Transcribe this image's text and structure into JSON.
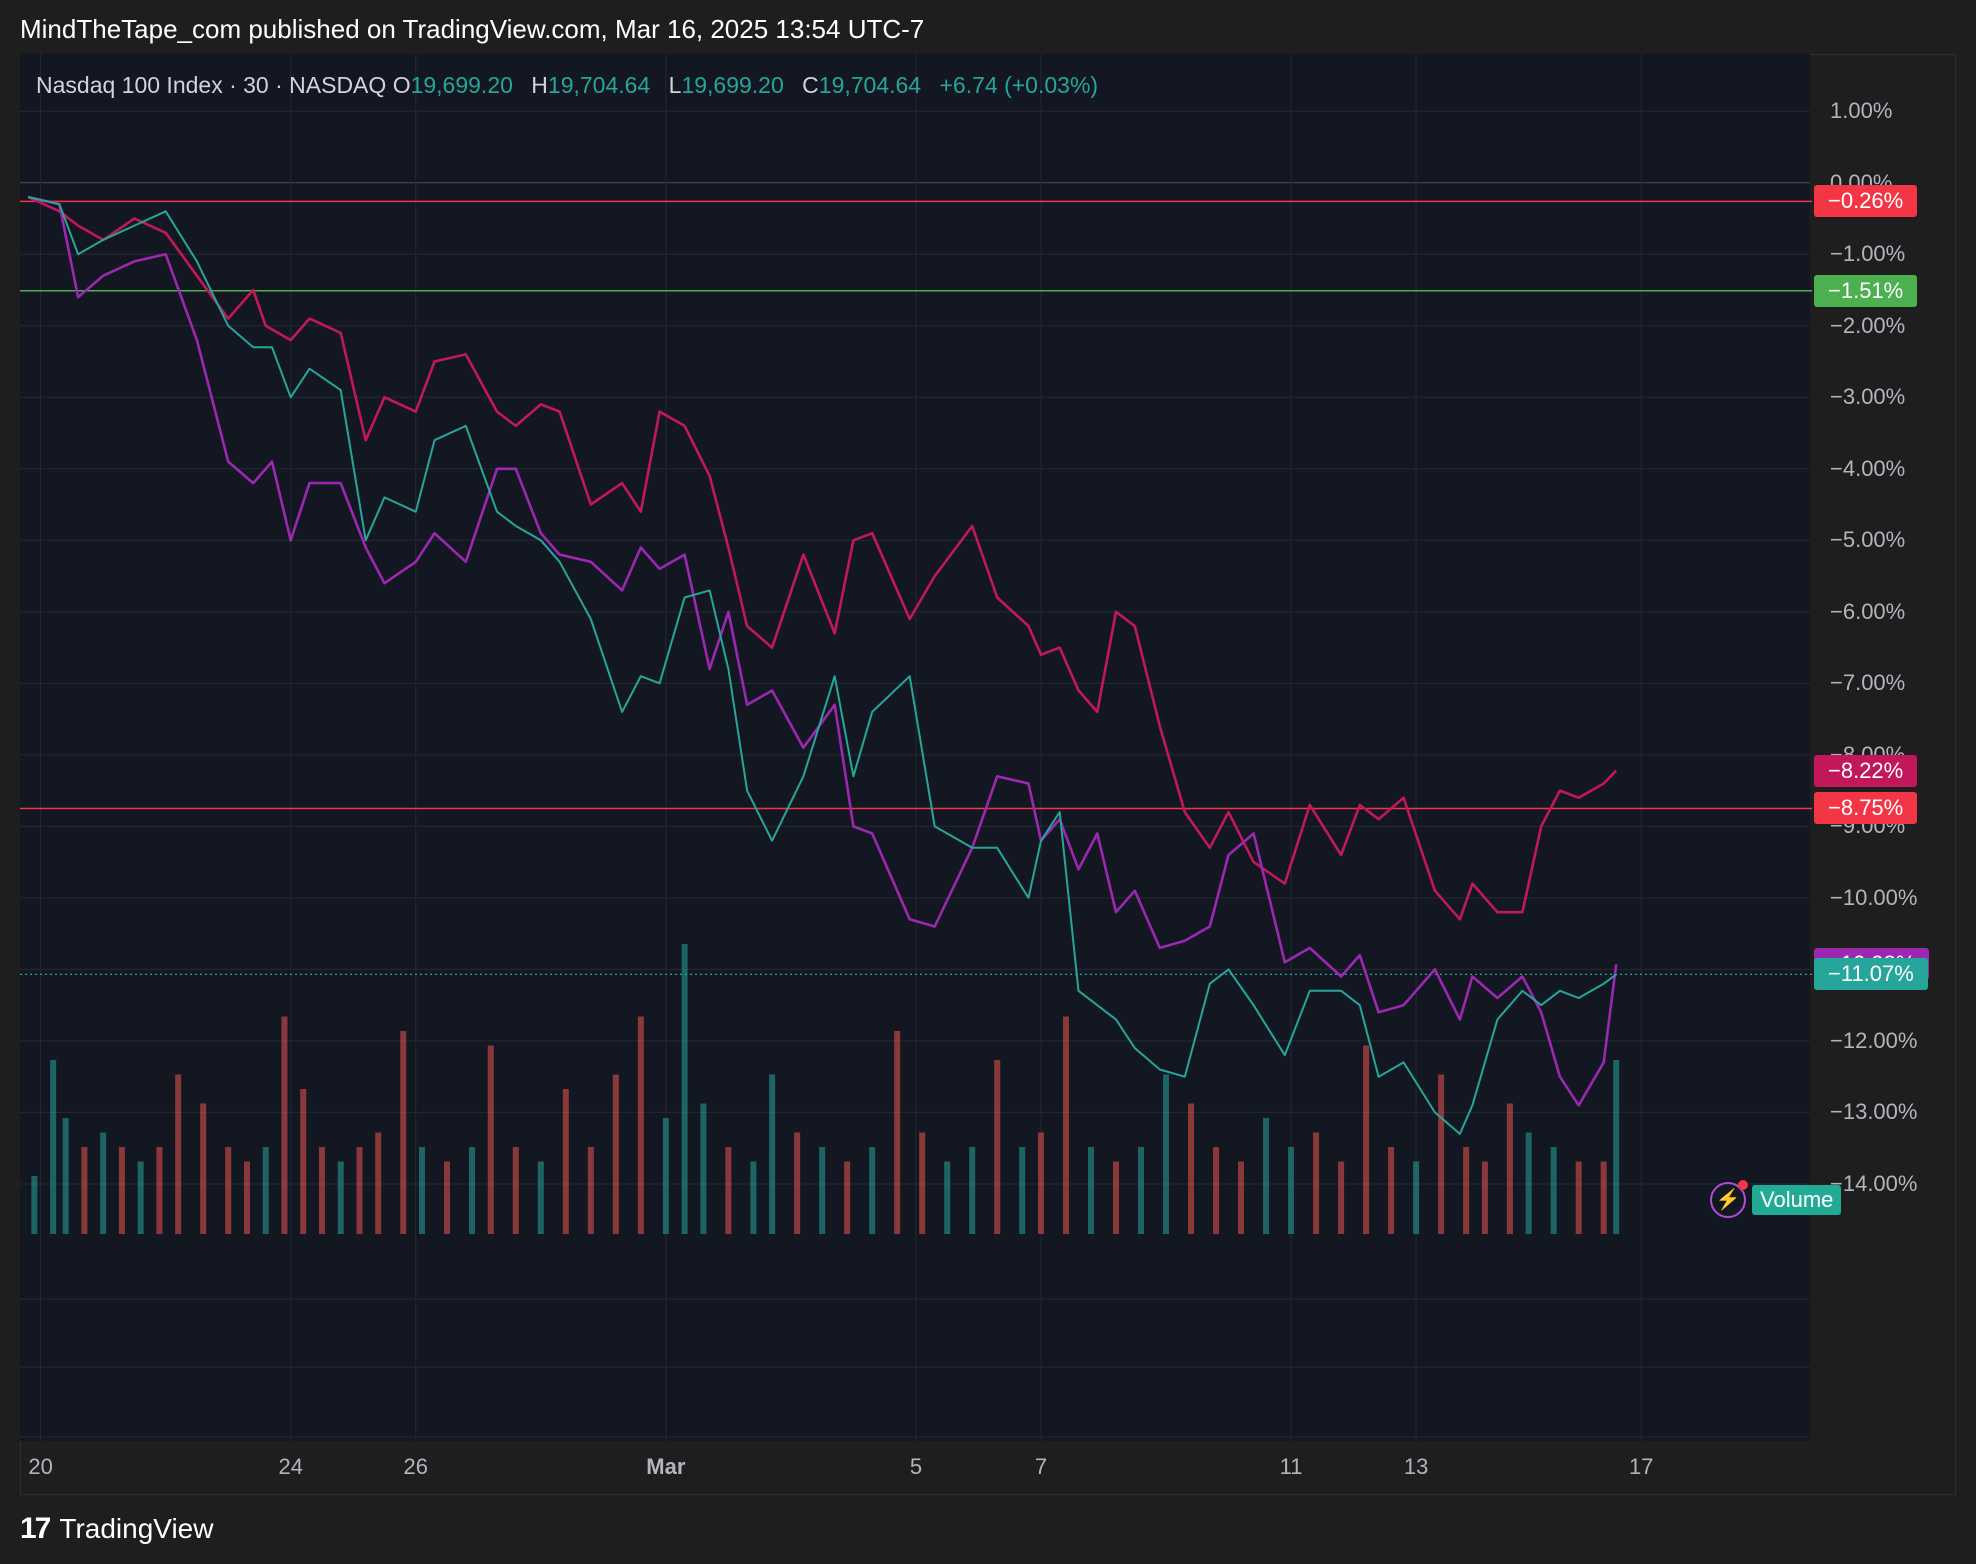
{
  "header": {
    "publisher": "MindTheTape_com published on TradingView.com, Mar 16, 2025 13:54 UTC-7"
  },
  "legend": {
    "symbol": "Nasdaq 100 Index · 30 · NASDAQ",
    "open_key": "O",
    "open": "19,699.20",
    "high_key": "H",
    "high": "19,704.64",
    "low_key": "L",
    "low": "19,699.20",
    "close_key": "C",
    "close": "19,704.64",
    "change": "+6.74 (+0.03%)"
  },
  "footer": {
    "brand": "TradingView",
    "logo": "17"
  },
  "colors": {
    "up": "#26a69a",
    "down": "#ef5350",
    "series_pink": "#c2185b",
    "series_purple": "#9c27b0",
    "bg": "#131722"
  },
  "volume_badge": {
    "label": "Volume",
    "icon": "lightning-icon"
  },
  "chart_data": {
    "type": "line",
    "x_ticks": [
      {
        "label": "20",
        "day": 0
      },
      {
        "label": "24",
        "day": 4
      },
      {
        "label": "26",
        "day": 6
      },
      {
        "label": "Mar",
        "day": 10
      },
      {
        "label": "5",
        "day": 14
      },
      {
        "label": "7",
        "day": 16
      },
      {
        "label": "11",
        "day": 20
      },
      {
        "label": "13",
        "day": 22
      },
      {
        "label": "17",
        "day": 25.6
      }
    ],
    "x_range": [
      -0.33,
      28.3
    ],
    "y_ticks": [
      "1.00%",
      "0.00%",
      "−1.00%",
      "−2.00%",
      "−3.00%",
      "−4.00%",
      "−5.00%",
      "−6.00%",
      "−7.00%",
      "−8.00%",
      "−9.00%",
      "−10.00%",
      "−11.00%",
      "−12.00%",
      "−13.00%",
      "−14.00%"
    ],
    "y_tick_values": [
      1,
      0,
      -1,
      -2,
      -3,
      -4,
      -5,
      -6,
      -7,
      -8,
      -9,
      -10,
      -11,
      -12,
      -13,
      -14
    ],
    "ylim": [
      -14.7,
      1.8
    ],
    "horizontal_lines": [
      {
        "value": -0.26,
        "color": "#f23645",
        "label": "−0.26%"
      },
      {
        "value": -1.51,
        "color": "#4caf50",
        "label": "−1.51%"
      },
      {
        "value": -8.75,
        "color": "#f23645",
        "label": "−8.75%"
      }
    ],
    "price_tags": [
      {
        "value": -8.22,
        "color": "#c2185b",
        "label": "−8.22%"
      },
      {
        "value": -10.93,
        "color": "#9c27b0",
        "label": "−10.93%"
      },
      {
        "value": -11.07,
        "color": "#26a69a",
        "label": "−11.07%"
      }
    ],
    "series": [
      {
        "color": "#c2185b",
        "x": [
          -0.2,
          0.3,
          0.6,
          1.0,
          1.5,
          2.0,
          2.5,
          3.0,
          3.4,
          3.6,
          4.0,
          4.3,
          4.8,
          5.2,
          5.5,
          6.0,
          6.3,
          6.8,
          7.3,
          7.6,
          8.0,
          8.3,
          8.8,
          9.3,
          9.6,
          9.9,
          10.3,
          10.7,
          11.0,
          11.3,
          11.7,
          12.2,
          12.7,
          13.0,
          13.3,
          13.9,
          14.3,
          14.9,
          15.3,
          15.8,
          16.0,
          16.3,
          16.6,
          16.9,
          17.2,
          17.5,
          17.9,
          18.3,
          18.7,
          19.0,
          19.4,
          19.9,
          20.3,
          20.8,
          21.1,
          21.4,
          21.8,
          22.3,
          22.7,
          22.9,
          23.3,
          23.7,
          24.0,
          24.3,
          24.6,
          25.0,
          25.2
        ],
        "y": [
          -0.2,
          -0.4,
          -0.6,
          -0.8,
          -0.5,
          -0.7,
          -1.3,
          -1.9,
          -1.5,
          -2.0,
          -2.2,
          -1.9,
          -2.1,
          -3.6,
          -3.0,
          -3.2,
          -2.5,
          -2.4,
          -3.2,
          -3.4,
          -3.1,
          -3.2,
          -4.5,
          -4.2,
          -4.6,
          -3.2,
          -3.4,
          -4.1,
          -5.1,
          -6.2,
          -6.5,
          -5.2,
          -6.3,
          -5.0,
          -4.9,
          -6.1,
          -5.5,
          -4.8,
          -5.8,
          -6.2,
          -6.6,
          -6.5,
          -7.1,
          -7.4,
          -6.0,
          -6.2,
          -7.6,
          -8.8,
          -9.3,
          -8.8,
          -9.5,
          -9.8,
          -8.7,
          -9.4,
          -8.7,
          -8.9,
          -8.6,
          -9.9,
          -10.3,
          -9.8,
          -10.2,
          -10.2,
          -9.0,
          -8.5,
          -8.6,
          -8.4,
          -8.22
        ]
      },
      {
        "color": "#9c27b0",
        "x": [
          -0.2,
          0.3,
          0.6,
          1.0,
          1.5,
          2.0,
          2.5,
          3.0,
          3.4,
          3.7,
          4.0,
          4.3,
          4.8,
          5.2,
          5.5,
          6.0,
          6.3,
          6.8,
          7.3,
          7.6,
          8.0,
          8.3,
          8.8,
          9.3,
          9.6,
          9.9,
          10.3,
          10.7,
          11.0,
          11.3,
          11.7,
          12.2,
          12.7,
          13.0,
          13.3,
          13.9,
          14.3,
          14.9,
          15.3,
          15.8,
          16.0,
          16.3,
          16.6,
          16.9,
          17.2,
          17.5,
          17.9,
          18.3,
          18.7,
          19.0,
          19.4,
          19.9,
          20.3,
          20.8,
          21.1,
          21.4,
          21.8,
          22.3,
          22.7,
          22.9,
          23.3,
          23.7,
          24.0,
          24.3,
          24.6,
          25.0,
          25.2
        ],
        "y": [
          -0.2,
          -0.3,
          -1.6,
          -1.3,
          -1.1,
          -1.0,
          -2.2,
          -3.9,
          -4.2,
          -3.9,
          -5.0,
          -4.2,
          -4.2,
          -5.1,
          -5.6,
          -5.3,
          -4.9,
          -5.3,
          -4.0,
          -4.0,
          -4.9,
          -5.2,
          -5.3,
          -5.7,
          -5.1,
          -5.4,
          -5.2,
          -6.8,
          -6.0,
          -7.3,
          -7.1,
          -7.9,
          -7.3,
          -9.0,
          -9.1,
          -10.3,
          -10.4,
          -9.3,
          -8.3,
          -8.4,
          -9.2,
          -8.9,
          -9.6,
          -9.1,
          -10.2,
          -9.9,
          -10.7,
          -10.6,
          -10.4,
          -9.4,
          -9.1,
          -10.9,
          -10.7,
          -11.1,
          -10.8,
          -11.6,
          -11.5,
          -11.0,
          -11.7,
          -11.1,
          -11.4,
          -11.1,
          -11.6,
          -12.5,
          -12.9,
          -12.3,
          -10.93
        ]
      },
      {
        "color": "#26a69a",
        "x": [
          -0.2,
          0.3,
          0.6,
          1.0,
          1.5,
          2.0,
          2.5,
          3.0,
          3.4,
          3.7,
          4.0,
          4.3,
          4.8,
          5.2,
          5.5,
          6.0,
          6.3,
          6.8,
          7.3,
          7.6,
          8.0,
          8.3,
          8.8,
          9.3,
          9.6,
          9.9,
          10.3,
          10.7,
          11.0,
          11.3,
          11.7,
          12.2,
          12.7,
          13.0,
          13.3,
          13.9,
          14.3,
          14.9,
          15.3,
          15.8,
          16.0,
          16.3,
          16.6,
          16.9,
          17.2,
          17.5,
          17.9,
          18.3,
          18.7,
          19.0,
          19.4,
          19.9,
          20.3,
          20.8,
          21.1,
          21.4,
          21.8,
          22.3,
          22.7,
          22.9,
          23.3,
          23.7,
          24.0,
          24.3,
          24.6,
          25.0,
          25.2
        ],
        "y": [
          -0.2,
          -0.3,
          -1.0,
          -0.8,
          -0.6,
          -0.4,
          -1.1,
          -2.0,
          -2.3,
          -2.3,
          -3.0,
          -2.6,
          -2.9,
          -5.0,
          -4.4,
          -4.6,
          -3.6,
          -3.4,
          -4.6,
          -4.8,
          -5.0,
          -5.3,
          -6.1,
          -7.4,
          -6.9,
          -7.0,
          -5.8,
          -5.7,
          -6.8,
          -8.5,
          -9.2,
          -8.3,
          -6.9,
          -8.3,
          -7.4,
          -6.9,
          -9.0,
          -9.3,
          -9.3,
          -10.0,
          -9.2,
          -8.8,
          -11.3,
          -11.5,
          -11.7,
          -12.1,
          -12.4,
          -12.5,
          -11.2,
          -11.0,
          -11.5,
          -12.2,
          -11.3,
          -11.3,
          -11.5,
          -12.5,
          -12.3,
          -13.0,
          -13.3,
          -12.9,
          -11.7,
          -11.3,
          -11.5,
          -11.3,
          -11.4,
          -11.2,
          -11.07
        ]
      }
    ],
    "volume": [
      {
        "x": -0.1,
        "v": 0.2,
        "up": true
      },
      {
        "x": 0.2,
        "v": 0.6,
        "up": true
      },
      {
        "x": 0.4,
        "v": 0.4,
        "up": true
      },
      {
        "x": 0.7,
        "v": 0.3,
        "up": false
      },
      {
        "x": 1.0,
        "v": 0.35,
        "up": true
      },
      {
        "x": 1.3,
        "v": 0.3,
        "up": false
      },
      {
        "x": 1.6,
        "v": 0.25,
        "up": true
      },
      {
        "x": 1.9,
        "v": 0.3,
        "up": false
      },
      {
        "x": 2.2,
        "v": 0.55,
        "up": false
      },
      {
        "x": 2.6,
        "v": 0.45,
        "up": false
      },
      {
        "x": 3.0,
        "v": 0.3,
        "up": false
      },
      {
        "x": 3.3,
        "v": 0.25,
        "up": false
      },
      {
        "x": 3.6,
        "v": 0.3,
        "up": true
      },
      {
        "x": 3.9,
        "v": 0.75,
        "up": false
      },
      {
        "x": 4.2,
        "v": 0.5,
        "up": false
      },
      {
        "x": 4.5,
        "v": 0.3,
        "up": false
      },
      {
        "x": 4.8,
        "v": 0.25,
        "up": true
      },
      {
        "x": 5.1,
        "v": 0.3,
        "up": false
      },
      {
        "x": 5.4,
        "v": 0.35,
        "up": false
      },
      {
        "x": 5.8,
        "v": 0.7,
        "up": false
      },
      {
        "x": 6.1,
        "v": 0.3,
        "up": true
      },
      {
        "x": 6.5,
        "v": 0.25,
        "up": false
      },
      {
        "x": 6.9,
        "v": 0.3,
        "up": true
      },
      {
        "x": 7.2,
        "v": 0.65,
        "up": false
      },
      {
        "x": 7.6,
        "v": 0.3,
        "up": false
      },
      {
        "x": 8.0,
        "v": 0.25,
        "up": true
      },
      {
        "x": 8.4,
        "v": 0.5,
        "up": false
      },
      {
        "x": 8.8,
        "v": 0.3,
        "up": false
      },
      {
        "x": 9.2,
        "v": 0.55,
        "up": false
      },
      {
        "x": 9.6,
        "v": 0.75,
        "up": false
      },
      {
        "x": 10.0,
        "v": 0.4,
        "up": true
      },
      {
        "x": 10.3,
        "v": 1.0,
        "up": true
      },
      {
        "x": 10.6,
        "v": 0.45,
        "up": true
      },
      {
        "x": 11.0,
        "v": 0.3,
        "up": false
      },
      {
        "x": 11.4,
        "v": 0.25,
        "up": true
      },
      {
        "x": 11.7,
        "v": 0.55,
        "up": true
      },
      {
        "x": 12.1,
        "v": 0.35,
        "up": false
      },
      {
        "x": 12.5,
        "v": 0.3,
        "up": true
      },
      {
        "x": 12.9,
        "v": 0.25,
        "up": false
      },
      {
        "x": 13.3,
        "v": 0.3,
        "up": true
      },
      {
        "x": 13.7,
        "v": 0.7,
        "up": false
      },
      {
        "x": 14.1,
        "v": 0.35,
        "up": false
      },
      {
        "x": 14.5,
        "v": 0.25,
        "up": true
      },
      {
        "x": 14.9,
        "v": 0.3,
        "up": true
      },
      {
        "x": 15.3,
        "v": 0.6,
        "up": false
      },
      {
        "x": 15.7,
        "v": 0.3,
        "up": true
      },
      {
        "x": 16.0,
        "v": 0.35,
        "up": false
      },
      {
        "x": 16.4,
        "v": 0.75,
        "up": false
      },
      {
        "x": 16.8,
        "v": 0.3,
        "up": true
      },
      {
        "x": 17.2,
        "v": 0.25,
        "up": false
      },
      {
        "x": 17.6,
        "v": 0.3,
        "up": true
      },
      {
        "x": 18.0,
        "v": 0.55,
        "up": true
      },
      {
        "x": 18.4,
        "v": 0.45,
        "up": false
      },
      {
        "x": 18.8,
        "v": 0.3,
        "up": false
      },
      {
        "x": 19.2,
        "v": 0.25,
        "up": false
      },
      {
        "x": 19.6,
        "v": 0.4,
        "up": true
      },
      {
        "x": 20.0,
        "v": 0.3,
        "up": true
      },
      {
        "x": 20.4,
        "v": 0.35,
        "up": false
      },
      {
        "x": 20.8,
        "v": 0.25,
        "up": false
      },
      {
        "x": 21.2,
        "v": 0.65,
        "up": false
      },
      {
        "x": 21.6,
        "v": 0.3,
        "up": false
      },
      {
        "x": 22.0,
        "v": 0.25,
        "up": true
      },
      {
        "x": 22.4,
        "v": 0.55,
        "up": false
      },
      {
        "x": 22.8,
        "v": 0.3,
        "up": false
      },
      {
        "x": 23.1,
        "v": 0.25,
        "up": false
      },
      {
        "x": 23.5,
        "v": 0.45,
        "up": false
      },
      {
        "x": 23.8,
        "v": 0.35,
        "up": true
      },
      {
        "x": 24.2,
        "v": 0.3,
        "up": true
      },
      {
        "x": 24.6,
        "v": 0.25,
        "up": false
      },
      {
        "x": 25.0,
        "v": 0.25,
        "up": false
      },
      {
        "x": 25.2,
        "v": 0.6,
        "up": true
      }
    ]
  }
}
